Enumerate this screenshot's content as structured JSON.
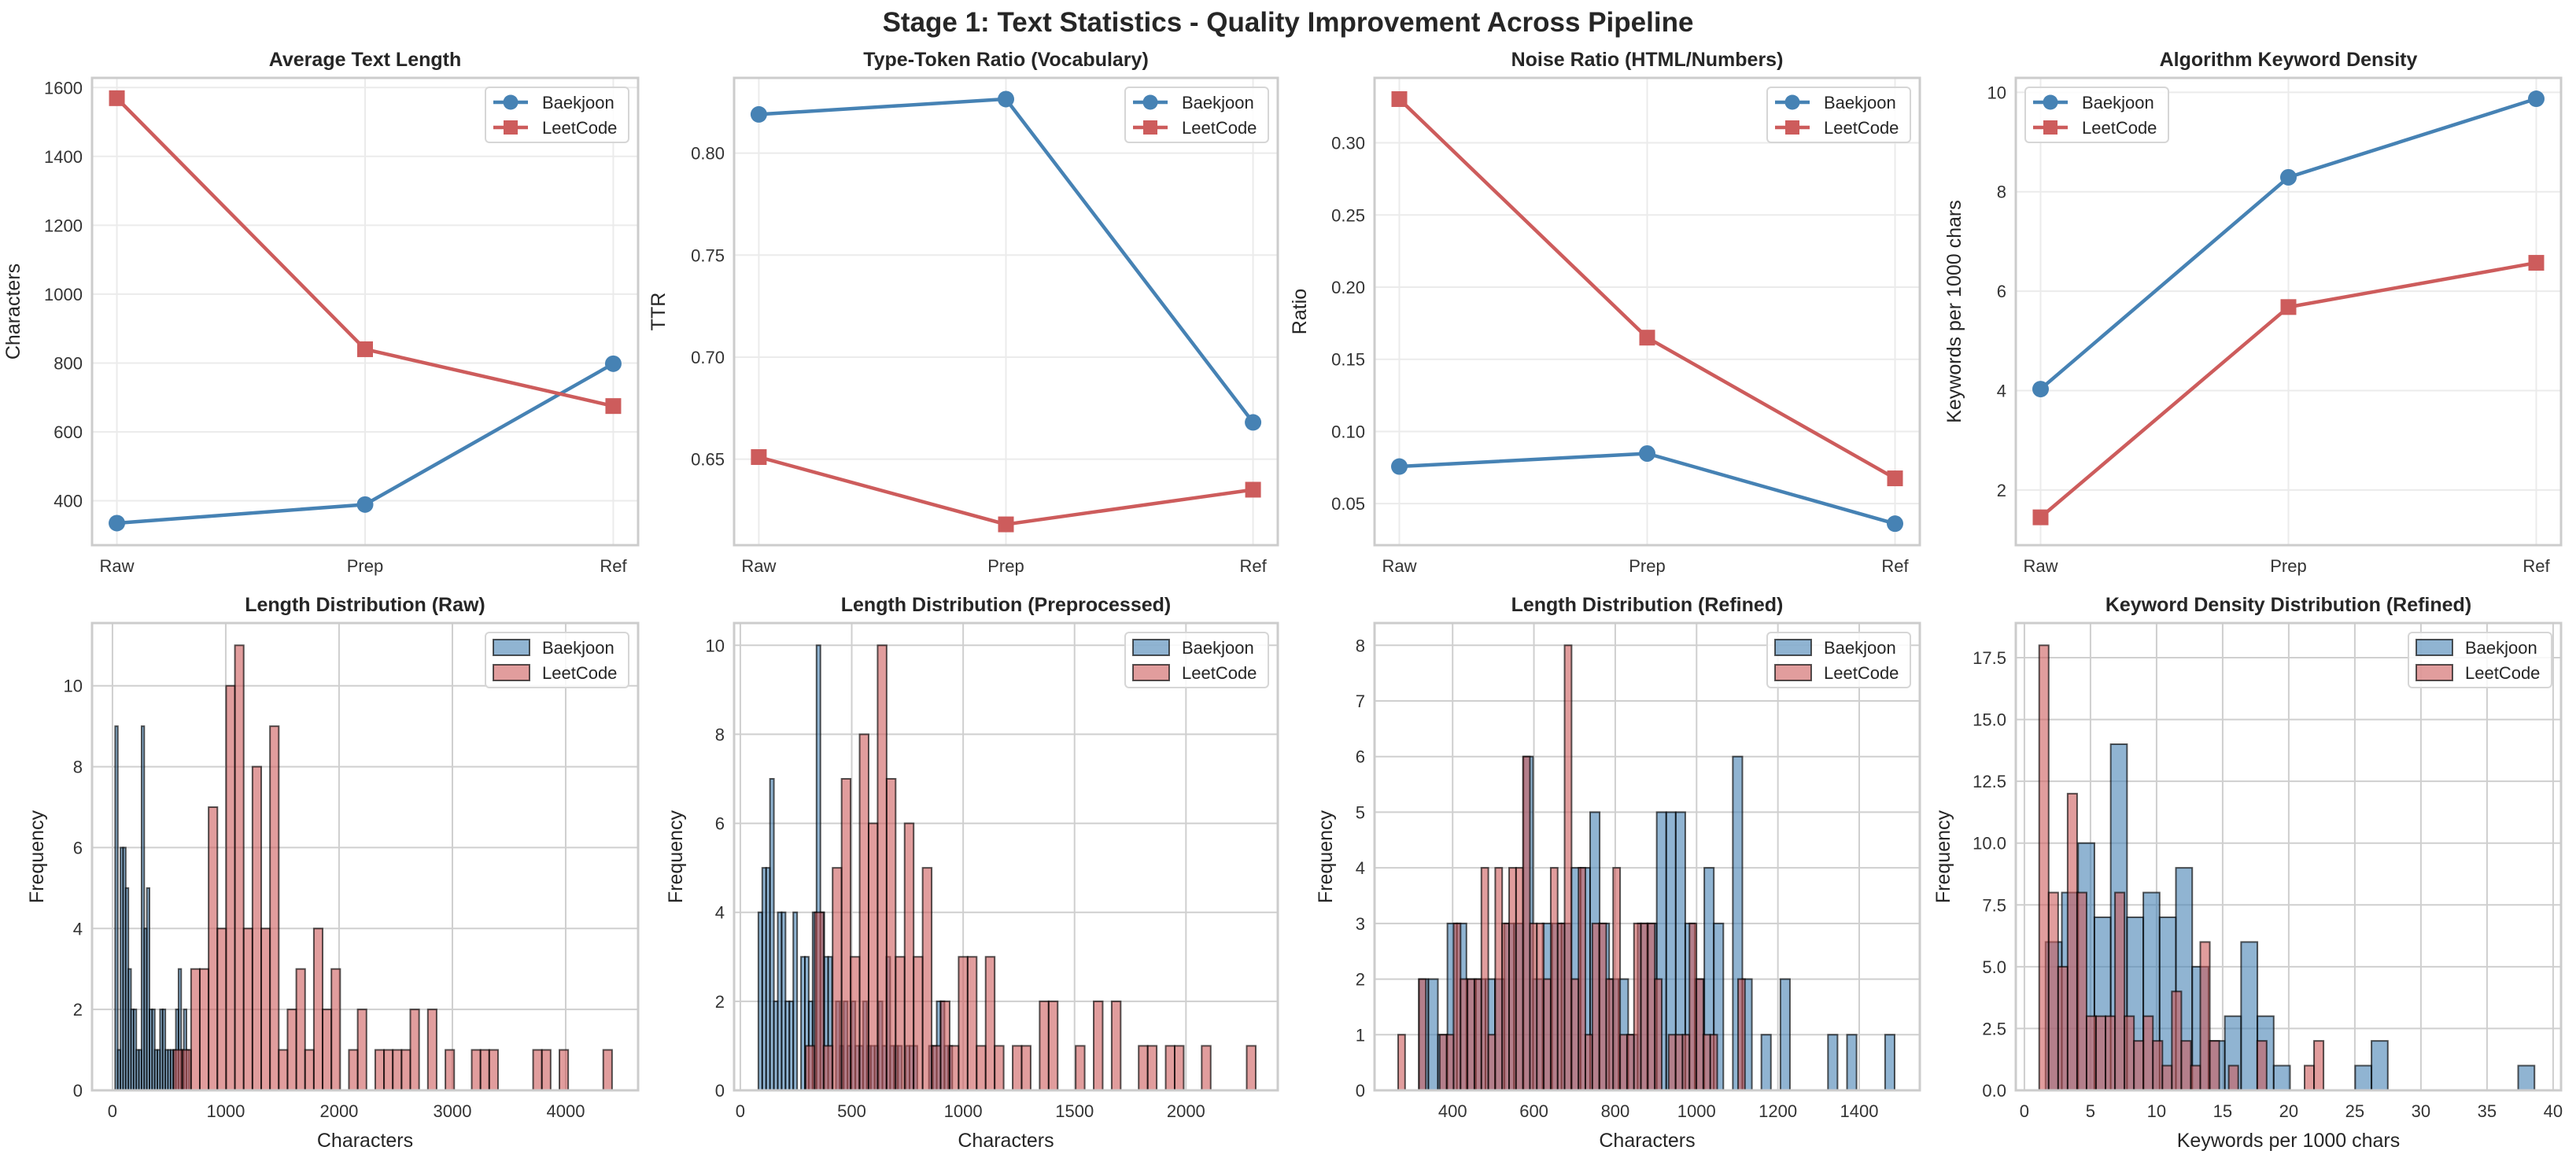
{
  "title": "Stage 1: Text Statistics - Quality Improvement Across Pipeline",
  "colors": {
    "Baekjoon": "#4682b4",
    "LeetCode": "#cd5c5c"
  },
  "chart_data": [
    {
      "type": "line",
      "title": "Average Text Length",
      "xlabel": "",
      "ylabel": "Characters",
      "categories": [
        "Raw",
        "Prep",
        "Ref"
      ],
      "xlim": [
        -0.1,
        2.1
      ],
      "ylim": [
        271,
        1628
      ],
      "yticks": [
        "400",
        "600",
        "800",
        "1000",
        "1200",
        "1400",
        "1600"
      ],
      "grid": true,
      "legend": "top-right",
      "series": [
        {
          "name": "Baekjoon",
          "marker": "circle",
          "values": [
            335,
            389,
            798
          ]
        },
        {
          "name": "LeetCode",
          "marker": "square",
          "values": [
            1569,
            840,
            675
          ]
        }
      ]
    },
    {
      "type": "line",
      "title": "Type-Token Ratio (Vocabulary)",
      "xlabel": "",
      "ylabel": "TTR",
      "categories": [
        "Raw",
        "Prep",
        "Ref"
      ],
      "xlim": [
        -0.1,
        2.1
      ],
      "ylim": [
        0.6078,
        0.8369
      ],
      "yticks": [
        "0.65",
        "0.70",
        "0.75",
        "0.80"
      ],
      "grid": true,
      "legend": "top-right",
      "series": [
        {
          "name": "Baekjoon",
          "marker": "circle",
          "values": [
            0.819,
            0.8265,
            0.668
          ]
        },
        {
          "name": "LeetCode",
          "marker": "square",
          "values": [
            0.651,
            0.618,
            0.635
          ]
        }
      ]
    },
    {
      "type": "line",
      "title": "Noise Ratio (HTML/Numbers)",
      "xlabel": "",
      "ylabel": "Ratio",
      "categories": [
        "Raw",
        "Prep",
        "Ref"
      ],
      "xlim": [
        -0.1,
        2.1
      ],
      "ylim": [
        0.0212,
        0.345
      ],
      "yticks": [
        "0.05",
        "0.10",
        "0.15",
        "0.20",
        "0.25",
        "0.30"
      ],
      "grid": true,
      "legend": "top-right",
      "series": [
        {
          "name": "Baekjoon",
          "marker": "circle",
          "values": [
            0.0757,
            0.0847,
            0.0361
          ]
        },
        {
          "name": "LeetCode",
          "marker": "square",
          "values": [
            0.3303,
            0.165,
            0.0675
          ]
        }
      ]
    },
    {
      "type": "line",
      "title": "Algorithm Keyword Density",
      "xlabel": "",
      "ylabel": "Keywords per 1000 chars",
      "categories": [
        "Raw",
        "Prep",
        "Ref"
      ],
      "xlim": [
        -0.1,
        2.1
      ],
      "ylim": [
        0.89,
        10.29
      ],
      "yticks": [
        "2",
        "4",
        "6",
        "8",
        "10"
      ],
      "grid": true,
      "legend": "top-left",
      "series": [
        {
          "name": "Baekjoon",
          "marker": "circle",
          "values": [
            4.03,
            8.29,
            9.87
          ]
        },
        {
          "name": "LeetCode",
          "marker": "square",
          "values": [
            1.45,
            5.68,
            6.57
          ]
        }
      ]
    },
    {
      "type": "histogram",
      "title": "Length Distribution (Raw)",
      "xlabel": "Characters",
      "ylabel": "Frequency",
      "xlim": [
        -180,
        4639
      ],
      "ylim": [
        0,
        11.55
      ],
      "xticks": [
        "0",
        "1000",
        "2000",
        "3000",
        "4000"
      ],
      "yticks": [
        "0",
        "2",
        "4",
        "6",
        "8",
        "10"
      ],
      "grid": true,
      "legend": "top-right",
      "series": [
        {
          "name": "Baekjoon",
          "bin_start": 24,
          "bin_width": 23.3,
          "counts": [
            9,
            1,
            6,
            6,
            5,
            3,
            2,
            2,
            1,
            1,
            9,
            4,
            5,
            2,
            2,
            1,
            1,
            2,
            2,
            1,
            1,
            1,
            1,
            2,
            3,
            1,
            2,
            1,
            0,
            0
          ]
        },
        {
          "name": "LeetCode",
          "bin_start": 539,
          "bin_width": 77.4,
          "counts": [
            1,
            1,
            3,
            3,
            7,
            4,
            10,
            11,
            4,
            8,
            4,
            9,
            1,
            2,
            3,
            1,
            4,
            2,
            3,
            0,
            1,
            2,
            0,
            1,
            1,
            1,
            1,
            2,
            0,
            2,
            0,
            1,
            0,
            0,
            1,
            1,
            1,
            0,
            0,
            0,
            0,
            1,
            1,
            0,
            1,
            0,
            0,
            0,
            0,
            1
          ]
        }
      ]
    },
    {
      "type": "histogram",
      "title": "Length Distribution (Preprocessed)",
      "xlabel": "Characters",
      "ylabel": "Frequency",
      "xlim": [
        -28,
        2412
      ],
      "ylim": [
        0,
        10.5
      ],
      "xticks": [
        "0",
        "500",
        "1000",
        "1500",
        "2000"
      ],
      "yticks": [
        "0",
        "2",
        "4",
        "6",
        "8",
        "10"
      ],
      "grid": true,
      "legend": "top-right",
      "series": [
        {
          "name": "Baekjoon",
          "bin_start": 81,
          "bin_width": 17.4,
          "counts": [
            4,
            5,
            5,
            7,
            2,
            4,
            4,
            2,
            2,
            4,
            0,
            3,
            3,
            2,
            4,
            10,
            4,
            3,
            3,
            0,
            2,
            1,
            2,
            1,
            2,
            1,
            1,
            2,
            1,
            1,
            1,
            2,
            1,
            3,
            1,
            1,
            1,
            0,
            1,
            1,
            1,
            0,
            0,
            0,
            1,
            1,
            2,
            2,
            1,
            1
          ]
        },
        {
          "name": "LeetCode",
          "bin_start": 293,
          "bin_width": 40.4,
          "counts": [
            1,
            4,
            1,
            5,
            7,
            3,
            8,
            6,
            10,
            7,
            3,
            6,
            3,
            5,
            1,
            2,
            1,
            3,
            3,
            1,
            3,
            1,
            0,
            1,
            1,
            0,
            2,
            2,
            0,
            0,
            1,
            0,
            2,
            0,
            2,
            0,
            0,
            1,
            1,
            0,
            1,
            1,
            0,
            0,
            1,
            0,
            0,
            0,
            0,
            1
          ]
        }
      ]
    },
    {
      "type": "histogram",
      "title": "Length Distribution (Refined)",
      "xlabel": "Characters",
      "ylabel": "Frequency",
      "xlim": [
        208,
        1549
      ],
      "ylim": [
        0,
        8.4
      ],
      "xticks": [
        "400",
        "600",
        "800",
        "1000",
        "1200",
        "1400"
      ],
      "yticks": [
        "0",
        "1",
        "2",
        "3",
        "4",
        "5",
        "6",
        "7",
        "8"
      ],
      "grid": true,
      "legend": "top-right",
      "series": [
        {
          "name": "Baekjoon",
          "bin_start": 317,
          "bin_width": 23.4,
          "counts": [
            2,
            2,
            1,
            3,
            3,
            2,
            2,
            2,
            2,
            3,
            3,
            6,
            2,
            3,
            3,
            3,
            4,
            4,
            5,
            3,
            2,
            2,
            1,
            3,
            3,
            5,
            5,
            5,
            3,
            2,
            4,
            3,
            0,
            6,
            2,
            0,
            1,
            0,
            2,
            0,
            0,
            0,
            0,
            1,
            0,
            1,
            0,
            0,
            0,
            1
          ]
        },
        {
          "name": "LeetCode",
          "bin_start": 266,
          "bin_width": 17.06,
          "counts": [
            1,
            0,
            0,
            2,
            0,
            0,
            1,
            1,
            3,
            2,
            2,
            2,
            4,
            1,
            4,
            3,
            4,
            4,
            6,
            3,
            3,
            2,
            4,
            3,
            8,
            2,
            4,
            1,
            3,
            3,
            2,
            4,
            1,
            1,
            3,
            3,
            3,
            2,
            0,
            1,
            1,
            1,
            3,
            2,
            1,
            1,
            0,
            0,
            0,
            2
          ]
        }
      ]
    },
    {
      "type": "histogram",
      "title": "Keyword Density Distribution (Refined)",
      "xlabel": "Keywords per 1000 chars",
      "ylabel": "Frequency",
      "xlim": [
        -0.65,
        40.6
      ],
      "ylim": [
        0,
        18.9
      ],
      "xticks": [
        "0",
        "5",
        "10",
        "15",
        "20",
        "25",
        "30",
        "35",
        "40"
      ],
      "yticks": [
        "0.0",
        "2.5",
        "5.0",
        "7.5",
        "10.0",
        "12.5",
        "15.0",
        "17.5"
      ],
      "grid": true,
      "legend": "top-right",
      "series": [
        {
          "name": "Baekjoon",
          "bin_start": 1.6,
          "bin_width": 1.233,
          "counts": [
            6,
            8,
            10,
            7,
            14,
            7,
            8,
            7,
            9,
            5,
            2,
            3,
            6,
            3,
            1,
            0,
            0,
            0,
            0,
            1,
            2,
            0,
            0,
            0,
            0,
            0,
            0,
            0,
            0,
            1
          ]
        },
        {
          "name": "LeetCode",
          "bin_start": 1.12,
          "bin_width": 0.717,
          "counts": [
            18,
            8,
            5,
            12,
            8,
            3,
            3,
            3,
            8,
            3,
            2,
            3,
            2,
            1,
            4,
            2,
            1,
            6,
            2,
            0,
            1,
            0,
            0,
            2,
            0,
            0,
            0,
            0,
            1,
            2
          ]
        }
      ]
    }
  ]
}
